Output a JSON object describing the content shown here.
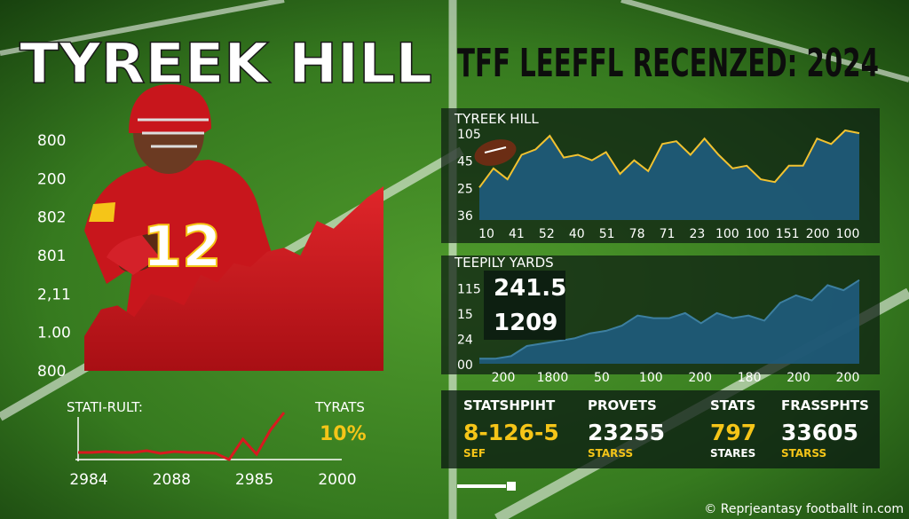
{
  "header": {
    "title": "TYREEK HILL",
    "subtitle": "TFF LEEFFL RECENZED: 2024",
    "jersey_number": "12"
  },
  "chart_data": [
    {
      "type": "area",
      "color": "#c8161c",
      "values": [
        0.9,
        1.6,
        1.7,
        1.4,
        2.0,
        1.9,
        1.7,
        2.5,
        2.3,
        2.8,
        2.7,
        3.1,
        3.2,
        3.0,
        3.9,
        3.7,
        4.1,
        4.5,
        4.8
      ],
      "ylim": [
        0,
        6
      ],
      "yticks": [
        {
          "value": 6,
          "label": "800"
        },
        {
          "value": 5,
          "label": "200"
        },
        {
          "value": 4,
          "label": "802"
        },
        {
          "value": 3,
          "label": "801"
        },
        {
          "value": 2,
          "label": "2,11"
        },
        {
          "value": 1,
          "label": "1.00"
        },
        {
          "value": 0,
          "label": "800"
        }
      ]
    },
    {
      "type": "line",
      "color": "#d8191f",
      "title": "STATI-RULT:",
      "annotations": [
        "TYRATS",
        "10%"
      ],
      "values": [
        10,
        10,
        11,
        10,
        10,
        12,
        9,
        11,
        10,
        10,
        9,
        2,
        25,
        8,
        35,
        55
      ],
      "ylim": [
        0,
        60
      ],
      "x_labels": [
        "2984",
        "2088",
        "2985",
        "2000"
      ]
    },
    {
      "type": "area",
      "color": "#1f5a78",
      "line_color": "#f2c230",
      "title": "TYREEK HILL",
      "values": [
        2.0,
        2.7,
        2.3,
        3.2,
        3.4,
        3.9,
        3.1,
        3.2,
        3.0,
        3.3,
        2.5,
        3.0,
        2.6,
        3.6,
        3.7,
        3.2,
        3.8,
        3.2,
        2.7,
        2.8,
        2.3,
        2.2,
        2.8,
        2.8,
        3.8,
        3.6,
        4.1,
        4.0
      ],
      "ylim": [
        0.8,
        4.1
      ],
      "yticks": [
        {
          "value": 4,
          "label": "105"
        },
        {
          "value": 3,
          "label": "45"
        },
        {
          "value": 2,
          "label": "25"
        },
        {
          "value": 1,
          "label": "36"
        }
      ],
      "x_labels": [
        "10",
        "41",
        "52",
        "40",
        "51",
        "78",
        "71",
        "23",
        "100",
        "100",
        "151",
        "200",
        "100"
      ]
    },
    {
      "type": "area",
      "color": "#1f5a78",
      "line_color": "#3d7fa0",
      "title": "TEEPILY YARDS",
      "annotations": [
        "241.5",
        "1209"
      ],
      "values": [
        0.2,
        0.2,
        0.3,
        0.7,
        0.8,
        0.9,
        1.0,
        1.2,
        1.3,
        1.5,
        1.9,
        1.8,
        1.8,
        2.0,
        1.6,
        2.0,
        1.8,
        1.9,
        1.7,
        2.4,
        2.7,
        2.5,
        3.1,
        2.9,
        3.3
      ],
      "ylim": [
        0,
        4.2
      ],
      "yticks": [
        {
          "value": 3,
          "label": "115"
        },
        {
          "value": 2,
          "label": "15"
        },
        {
          "value": 1,
          "label": "24"
        },
        {
          "value": 0,
          "label": "00"
        }
      ],
      "x_labels": [
        "200",
        "1800",
        "50",
        "100",
        "200",
        "180",
        "200",
        "200"
      ]
    }
  ],
  "stats": [
    {
      "label": "STATSHPIHT",
      "value": "8-126-5",
      "sub": "SEF",
      "value_color": "#f5c518",
      "sub_color": "#f5c518"
    },
    {
      "label": "PROVETS",
      "value": "23255",
      "sub": "STARSS",
      "value_color": "#ffffff",
      "sub_color": "#f5c518"
    },
    {
      "label": "STATS",
      "value": "797",
      "sub": "STARES",
      "value_color": "#f5c518",
      "sub_color": "#ffffff"
    },
    {
      "label": "FRASSPHTS",
      "value": "33605",
      "sub": "STARSS",
      "value_color": "#ffffff",
      "sub_color": "#f5c518"
    }
  ],
  "footer": "© Reprjeantasy footballt in.com"
}
